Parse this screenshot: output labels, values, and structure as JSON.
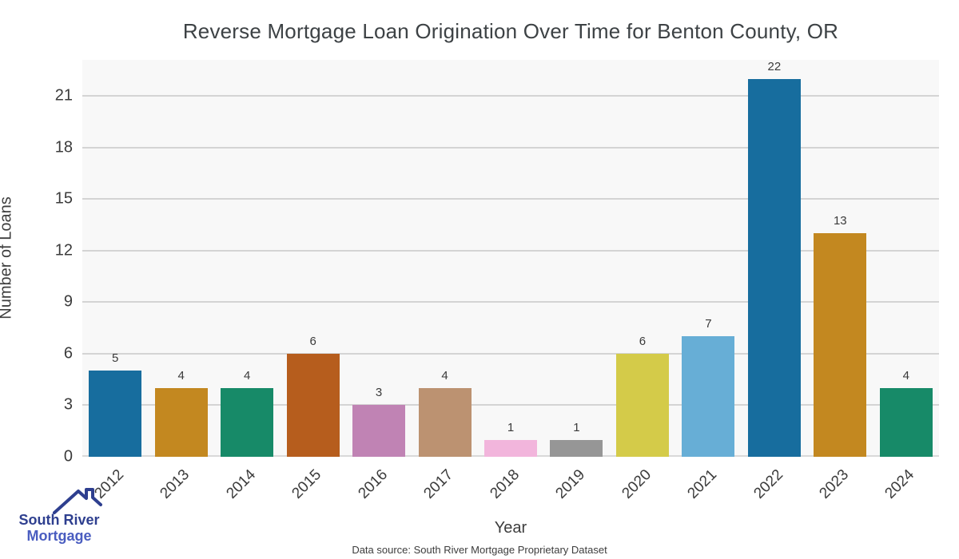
{
  "title": "Reverse Mortgage Loan Origination Over Time for Benton County, OR",
  "footer": {
    "source": "Data source: South River Mortgage Proprietary Dataset"
  },
  "logo": {
    "icon": "house-roof-icon",
    "line1": "South River",
    "line2": "Mortgage",
    "line1_color": "#2e3f8f",
    "line2_color": "#4a5dc0",
    "icon_color": "#2e3f8f"
  },
  "chart_data": {
    "type": "bar",
    "title": "Reverse Mortgage Loan Origination Over Time for Benton County, OR",
    "categories": [
      "2012",
      "2013",
      "2014",
      "2015",
      "2016",
      "2017",
      "2018",
      "2019",
      "2020",
      "2021",
      "2022",
      "2023",
      "2024"
    ],
    "values": [
      5,
      4,
      4,
      6,
      3,
      4,
      1,
      1,
      6,
      7,
      22,
      13,
      4
    ],
    "xlabel": "Year",
    "ylabel": "Number of Loans",
    "yticks": [
      0,
      3,
      6,
      9,
      12,
      15,
      18,
      21
    ],
    "ylim": [
      0,
      23.1
    ],
    "grid": true,
    "legend": "none",
    "plot_bg": "#f8f8f8",
    "gridline_color": "#d4d4d4",
    "bar_colors": [
      "#176d9e",
      "#c38820",
      "#178a68",
      "#b65d1d",
      "#c083b4",
      "#bc9271",
      "#f2b5dc",
      "#969696",
      "#d4cb49",
      "#67aed6",
      "#176d9e",
      "#c38820",
      "#178a68"
    ]
  }
}
